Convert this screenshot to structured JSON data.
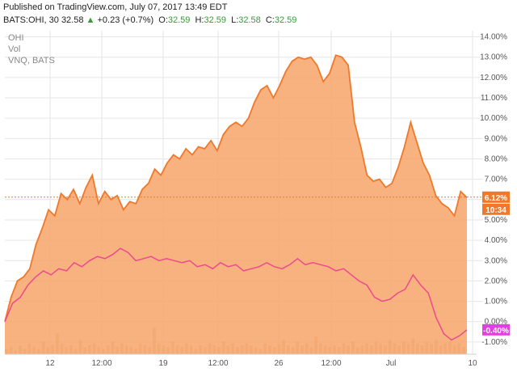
{
  "header": {
    "published": "Published on TradingView.com, July 07, 2017 13:49 EDT",
    "symbol": "BATS:OHI, 30",
    "last": "32.58",
    "arrow": "▲",
    "change": "+0.23 (+0.7%)",
    "o_label": "O:",
    "o_val": "32.59",
    "h_label": "H:",
    "h_val": "32.59",
    "l_label": "L:",
    "l_val": "32.58",
    "c_label": "C:",
    "c_val": "32.59"
  },
  "legend": [
    "OHI",
    "Vol",
    "VNQ, BATS"
  ],
  "badges": {
    "ohi_pct": "6.12%",
    "countdown": "10:34",
    "vnq_pct": "-0.40%"
  },
  "colors": {
    "ohi_line": "#f0782b",
    "ohi_fill": "#f6a468",
    "vnq_line": "#ec4a8c",
    "vnq_badge": "#e040e0",
    "volume": "#c9a07a",
    "grid": "#e6e6e6"
  },
  "chart_data": {
    "type": "area",
    "x_ticks": [
      "12",
      "12:00",
      "19",
      "12:00",
      "26",
      "12:00",
      "Jul",
      "10"
    ],
    "y_ticks": [
      "14.00%",
      "13.00%",
      "12.00%",
      "11.00%",
      "10.00%",
      "9.00%",
      "8.00%",
      "7.00%",
      "6.00%",
      "5.00%",
      "4.00%",
      "3.00%",
      "2.00%",
      "1.00%",
      "0.00%",
      "-1.00%"
    ],
    "ylim": [
      -1.6,
      14.3
    ],
    "last_value_line": 6.12,
    "series": [
      {
        "name": "OHI",
        "values": [
          0.0,
          1.2,
          2.0,
          2.2,
          2.6,
          3.8,
          4.6,
          5.5,
          5.2,
          6.3,
          6.0,
          6.5,
          5.8,
          6.6,
          7.2,
          5.8,
          6.4,
          6.0,
          6.2,
          5.5,
          5.9,
          5.8,
          6.5,
          6.8,
          7.5,
          7.2,
          7.8,
          8.2,
          8.0,
          8.5,
          8.2,
          8.6,
          8.5,
          8.9,
          8.4,
          9.2,
          9.6,
          9.8,
          9.6,
          10.0,
          10.8,
          11.4,
          11.6,
          11.0,
          11.6,
          12.3,
          12.8,
          13.0,
          12.9,
          13.0,
          12.6,
          11.8,
          12.2,
          13.1,
          13.0,
          12.6,
          9.8,
          8.6,
          7.2,
          6.9,
          7.0,
          6.6,
          6.8,
          7.6,
          8.6,
          9.8,
          8.8,
          7.8,
          7.2,
          6.2,
          5.8,
          5.6,
          5.2,
          6.4,
          6.1
        ],
        "area": true
      },
      {
        "name": "VNQ, BATS",
        "values": [
          0.0,
          0.9,
          1.2,
          1.8,
          2.2,
          2.5,
          2.3,
          2.6,
          2.5,
          2.9,
          2.7,
          3.0,
          3.2,
          3.1,
          3.3,
          3.6,
          3.4,
          3.0,
          3.1,
          3.2,
          3.0,
          3.1,
          3.0,
          2.9,
          3.0,
          2.7,
          2.8,
          2.6,
          2.9,
          2.7,
          2.8,
          2.5,
          2.6,
          2.7,
          2.9,
          2.7,
          2.6,
          2.8,
          3.1,
          2.8,
          2.9,
          2.8,
          2.7,
          2.5,
          2.6,
          2.3,
          2.0,
          1.8,
          1.2,
          1.0,
          1.1,
          1.4,
          1.6,
          2.3,
          1.8,
          1.4,
          0.2,
          -0.6,
          -0.9,
          -0.7,
          -0.4
        ],
        "area": false
      }
    ],
    "volume": [
      0.3,
      0.4,
      0.2,
      0.5,
      0.3,
      0.6,
      0.4,
      0.3,
      0.7,
      0.4,
      0.5,
      1.2,
      0.6,
      0.4,
      0.5,
      0.3,
      0.8,
      0.4,
      0.5,
      0.6,
      0.4,
      0.3,
      0.5,
      0.7,
      0.4,
      0.6,
      0.5,
      0.4,
      0.3,
      0.6,
      0.5,
      0.4,
      1.5,
      0.6,
      0.5,
      0.4,
      0.7,
      0.5,
      0.4,
      0.6,
      0.5,
      0.3,
      0.5,
      0.4,
      0.6,
      0.5,
      0.4,
      0.7,
      0.5,
      0.6,
      0.4,
      0.5,
      0.6,
      0.5,
      0.4,
      0.3,
      0.6,
      0.5,
      0.4,
      0.6,
      0.8,
      0.5,
      0.4,
      0.7,
      0.5,
      0.6,
      0.4,
      1.0,
      0.6,
      0.5,
      0.4,
      0.5,
      0.4,
      0.6,
      0.5,
      0.7,
      0.4,
      0.5,
      0.6,
      0.5,
      0.7,
      0.6,
      0.5,
      0.8,
      0.6,
      0.5,
      0.7,
      0.6,
      0.9,
      0.6,
      0.5,
      0.7,
      0.6,
      0.8,
      0.5,
      0.6,
      0.7,
      0.5,
      0.6,
      0.4
    ]
  }
}
